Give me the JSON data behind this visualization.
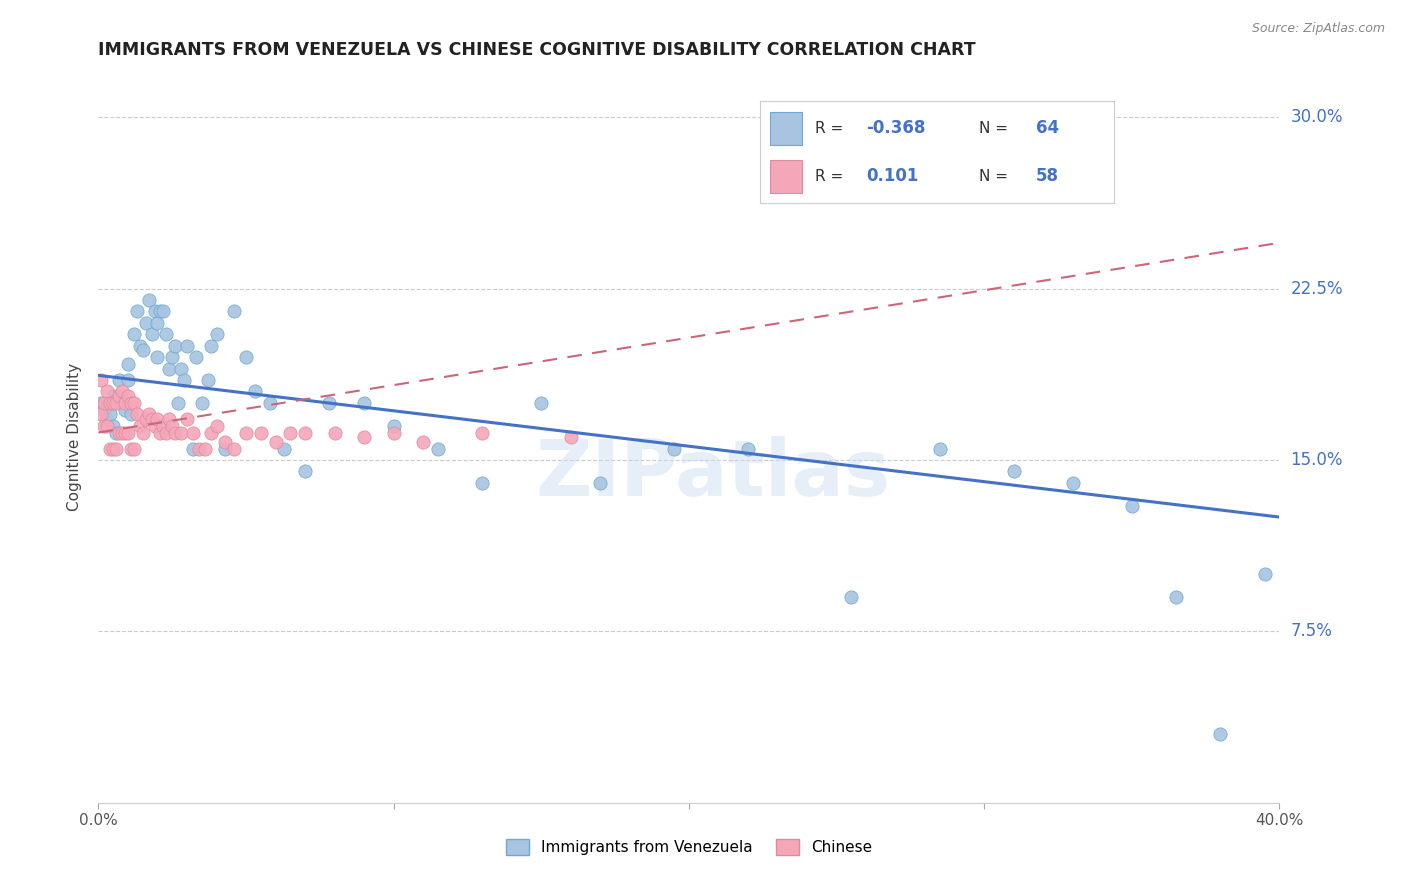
{
  "title": "IMMIGRANTS FROM VENEZUELA VS CHINESE COGNITIVE DISABILITY CORRELATION CHART",
  "source": "Source: ZipAtlas.com",
  "ylabel": "Cognitive Disability",
  "ytick_labels": [
    "7.5%",
    "15.0%",
    "22.5%",
    "30.0%"
  ],
  "ytick_values": [
    0.075,
    0.15,
    0.225,
    0.3
  ],
  "xlim": [
    0.0,
    0.4
  ],
  "ylim": [
    0.0,
    0.32
  ],
  "legend_r1_label": "R = -0.368   N = 64",
  "legend_r2_label": "R =  0.101   N = 58",
  "legend_r1_r": "-0.368",
  "legend_r1_n": "64",
  "legend_r2_r": "0.101",
  "legend_r2_n": "58",
  "color_venezuela": "#a8c4e0",
  "color_chinese": "#f4a7b9",
  "edge_venezuela": "#6fa8d4",
  "edge_chinese": "#e08aa0",
  "trendline_venezuela_color": "#4472c4",
  "trendline_chinese_color": "#cc6677",
  "watermark": "ZIPatlas",
  "venezuela_x": [
    0.001,
    0.002,
    0.003,
    0.003,
    0.004,
    0.005,
    0.005,
    0.006,
    0.007,
    0.008,
    0.009,
    0.01,
    0.01,
    0.011,
    0.012,
    0.013,
    0.014,
    0.015,
    0.016,
    0.017,
    0.018,
    0.019,
    0.02,
    0.02,
    0.021,
    0.022,
    0.023,
    0.024,
    0.025,
    0.026,
    0.027,
    0.028,
    0.029,
    0.03,
    0.032,
    0.033,
    0.035,
    0.037,
    0.038,
    0.04,
    0.043,
    0.046,
    0.05,
    0.053,
    0.058,
    0.063,
    0.07,
    0.078,
    0.09,
    0.1,
    0.115,
    0.13,
    0.15,
    0.17,
    0.195,
    0.22,
    0.255,
    0.285,
    0.31,
    0.33,
    0.35,
    0.365,
    0.38,
    0.395
  ],
  "venezuela_y": [
    0.175,
    0.172,
    0.168,
    0.174,
    0.17,
    0.165,
    0.178,
    0.162,
    0.185,
    0.175,
    0.172,
    0.185,
    0.192,
    0.17,
    0.205,
    0.215,
    0.2,
    0.198,
    0.21,
    0.22,
    0.205,
    0.215,
    0.195,
    0.21,
    0.215,
    0.215,
    0.205,
    0.19,
    0.195,
    0.2,
    0.175,
    0.19,
    0.185,
    0.2,
    0.155,
    0.195,
    0.175,
    0.185,
    0.2,
    0.205,
    0.155,
    0.215,
    0.195,
    0.18,
    0.175,
    0.155,
    0.145,
    0.175,
    0.175,
    0.165,
    0.155,
    0.14,
    0.175,
    0.14,
    0.155,
    0.155,
    0.09,
    0.155,
    0.145,
    0.14,
    0.13,
    0.09,
    0.03,
    0.1
  ],
  "chinese_x": [
    0.001,
    0.001,
    0.002,
    0.002,
    0.003,
    0.003,
    0.004,
    0.004,
    0.005,
    0.005,
    0.006,
    0.006,
    0.007,
    0.007,
    0.008,
    0.008,
    0.009,
    0.009,
    0.01,
    0.01,
    0.011,
    0.011,
    0.012,
    0.012,
    0.013,
    0.014,
    0.015,
    0.016,
    0.017,
    0.018,
    0.019,
    0.02,
    0.021,
    0.022,
    0.023,
    0.024,
    0.025,
    0.026,
    0.028,
    0.03,
    0.032,
    0.034,
    0.036,
    0.038,
    0.04,
    0.043,
    0.046,
    0.05,
    0.055,
    0.06,
    0.065,
    0.07,
    0.08,
    0.09,
    0.1,
    0.11,
    0.13,
    0.16
  ],
  "chinese_y": [
    0.185,
    0.17,
    0.175,
    0.165,
    0.18,
    0.165,
    0.175,
    0.155,
    0.175,
    0.155,
    0.175,
    0.155,
    0.178,
    0.162,
    0.18,
    0.162,
    0.175,
    0.162,
    0.178,
    0.162,
    0.175,
    0.155,
    0.175,
    0.155,
    0.17,
    0.165,
    0.162,
    0.168,
    0.17,
    0.168,
    0.165,
    0.168,
    0.162,
    0.165,
    0.162,
    0.168,
    0.165,
    0.162,
    0.162,
    0.168,
    0.162,
    0.155,
    0.155,
    0.162,
    0.165,
    0.158,
    0.155,
    0.162,
    0.162,
    0.158,
    0.162,
    0.162,
    0.162,
    0.16,
    0.162,
    0.158,
    0.162,
    0.16
  ]
}
